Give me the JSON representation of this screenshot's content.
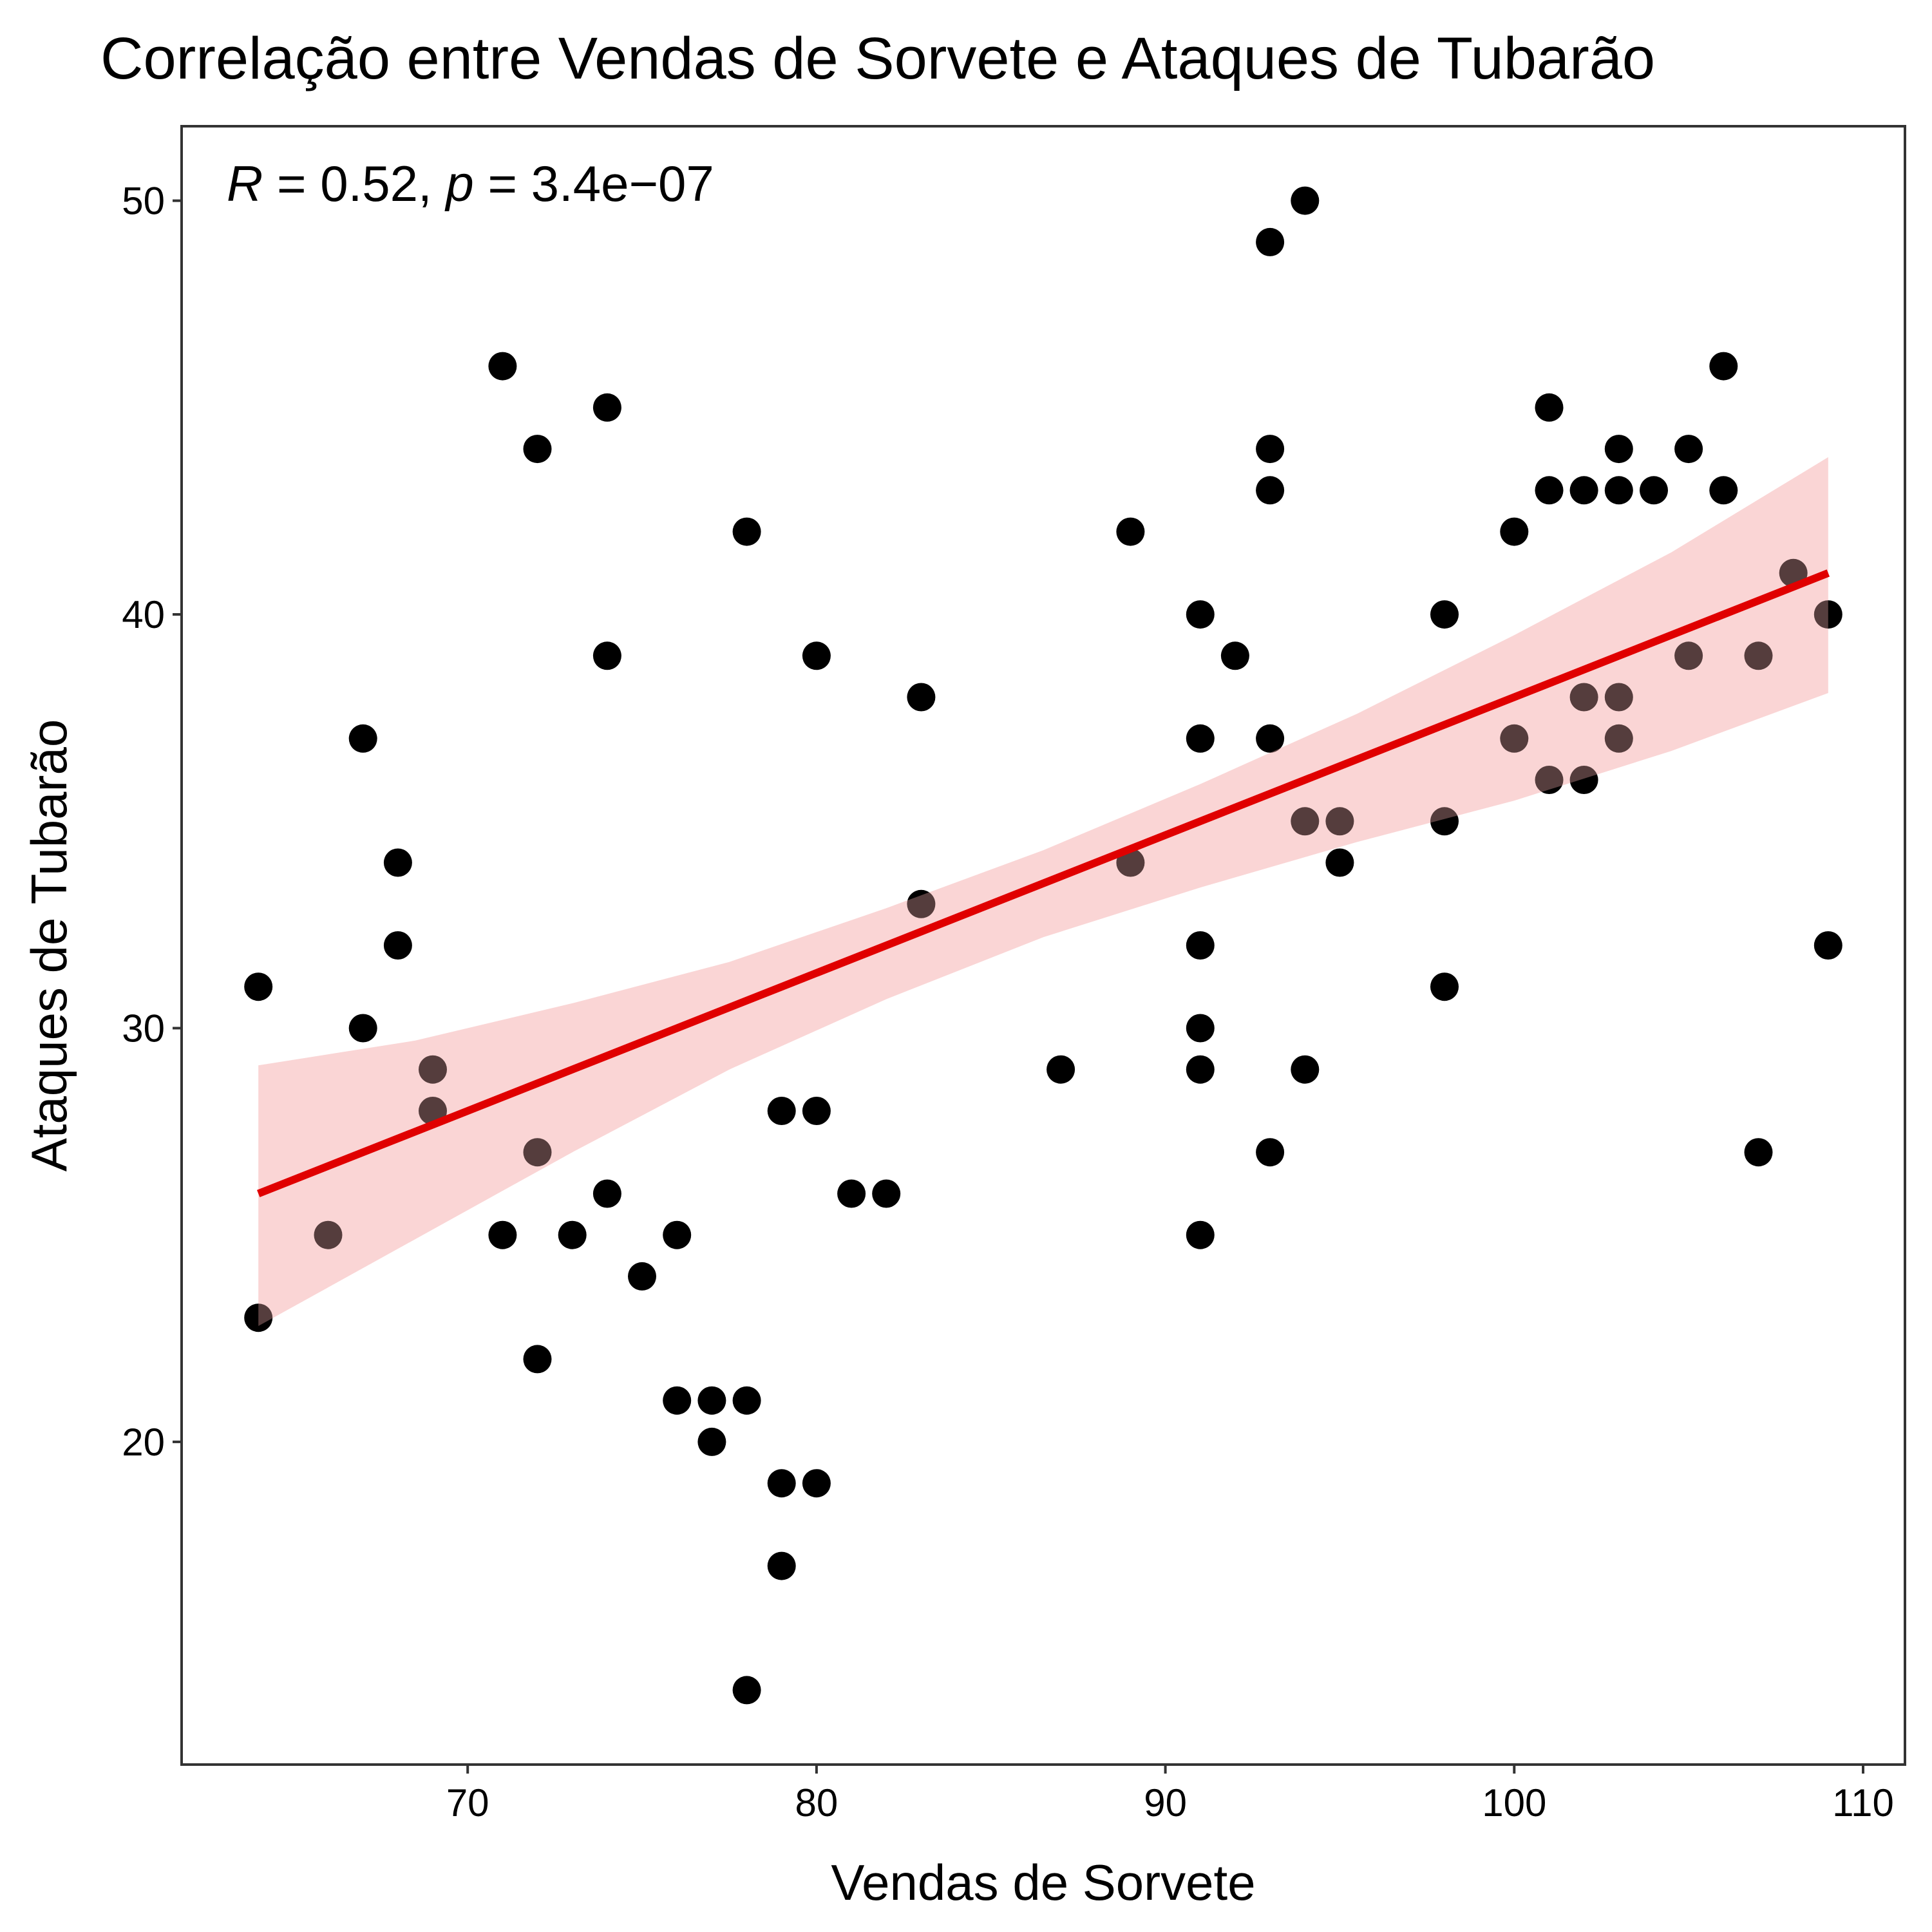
{
  "chart_data": {
    "type": "scatter",
    "title": "Correlação entre Vendas de Sorvete e Ataques de Tubarão",
    "xlabel": "Vendas de Sorvete",
    "ylabel": "Ataques de Tubarão",
    "annotation": {
      "r_symbol": "R",
      "r_text": " = 0.52, ",
      "p_symbol": "p",
      "p_text": " = 3.4e−07"
    },
    "xlim": [
      61.8,
      111.2
    ],
    "ylim": [
      12.2,
      51.8
    ],
    "xticks": [
      70,
      80,
      90,
      100,
      110
    ],
    "xtick_labels": [
      "70",
      "80",
      "90",
      "100",
      "110"
    ],
    "yticks": [
      20,
      30,
      40,
      50
    ],
    "ytick_labels": [
      "20",
      "30",
      "40",
      "50"
    ],
    "grid": false,
    "colors": {
      "points": "#000000",
      "fit_line": "#e00000",
      "confidence_band": "#fde8e8",
      "panel_border": "#333333"
    },
    "series": [
      {
        "x": [
          64,
          64,
          66,
          67,
          67,
          68,
          68,
          69,
          69,
          71,
          71,
          72,
          72,
          72,
          73,
          74,
          74,
          74,
          75,
          76,
          76,
          77,
          77,
          78,
          78,
          78,
          79,
          79,
          79,
          80,
          80,
          80,
          81,
          82,
          83,
          83,
          87,
          89,
          89,
          91,
          91,
          91,
          91,
          91,
          91,
          92,
          93,
          93,
          93,
          93,
          93,
          94,
          94,
          94,
          95,
          95,
          98,
          98,
          98,
          100,
          100,
          101,
          101,
          101,
          102,
          102,
          102,
          103,
          103,
          103,
          103,
          104,
          105,
          105,
          106,
          106,
          107,
          107,
          108,
          109,
          109
        ],
        "y": [
          31,
          23,
          25,
          37,
          30,
          34,
          32,
          29,
          28,
          46,
          25,
          44,
          27,
          22,
          25,
          45,
          39,
          26,
          24,
          25,
          21,
          21,
          20,
          42,
          21,
          14,
          28,
          19,
          17,
          39,
          28,
          19,
          26,
          26,
          38,
          33,
          29,
          42,
          34,
          40,
          37,
          32,
          30,
          29,
          25,
          39,
          49,
          44,
          43,
          37,
          27,
          50,
          35,
          29,
          35,
          34,
          40,
          35,
          31,
          42,
          37,
          45,
          43,
          36,
          43,
          38,
          36,
          44,
          43,
          38,
          37,
          43,
          44,
          39,
          46,
          43,
          39,
          27,
          41,
          40,
          32
        ]
      }
    ],
    "fit": {
      "method": "lm",
      "x_range": [
        64,
        109
      ],
      "y_start": 26.0,
      "y_end": 41.0,
      "band_lower": [
        22.8,
        24.9,
        27.0,
        29.0,
        30.7,
        32.2,
        33.4,
        34.5,
        35.5,
        36.7,
        38.1
      ],
      "band_upper": [
        29.1,
        29.7,
        30.6,
        31.6,
        32.9,
        34.3,
        35.9,
        37.6,
        39.5,
        41.5,
        43.8
      ],
      "band_x": [
        64,
        68.5,
        73,
        77.5,
        82,
        86.5,
        91,
        95.5,
        100,
        104.5,
        109
      ]
    }
  }
}
